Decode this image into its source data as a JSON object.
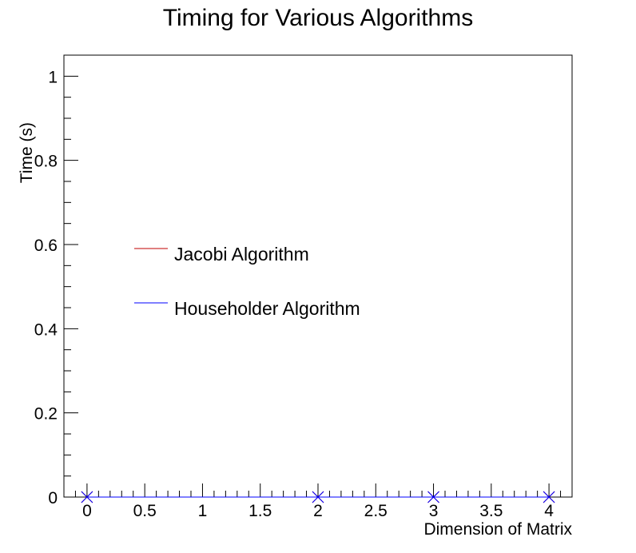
{
  "chart_data": {
    "type": "line",
    "title": "Timing for Various Algorithms",
    "xlabel": "Dimension of Matrix",
    "ylabel": "Time (s)",
    "xlim": [
      -0.2,
      4.2
    ],
    "ylim": [
      0,
      1.05
    ],
    "x_ticks": [
      "0",
      "0.5",
      "1",
      "1.5",
      "2",
      "2.5",
      "3",
      "3.5",
      "4"
    ],
    "y_ticks": [
      "0",
      "0.2",
      "0.4",
      "0.6",
      "0.8",
      "1"
    ],
    "grid": false,
    "legend_position": "center-left",
    "series": [
      {
        "name": "Jacobi Algorithm",
        "color": "#c00000",
        "marker": "x",
        "x": [
          0,
          2,
          3,
          4
        ],
        "y": [
          0,
          0,
          0,
          0
        ]
      },
      {
        "name": "Householder Algorithm",
        "color": "#0000ff",
        "marker": "x",
        "x": [
          0,
          2,
          3,
          4
        ],
        "y": [
          0,
          0,
          0,
          0
        ]
      }
    ]
  }
}
